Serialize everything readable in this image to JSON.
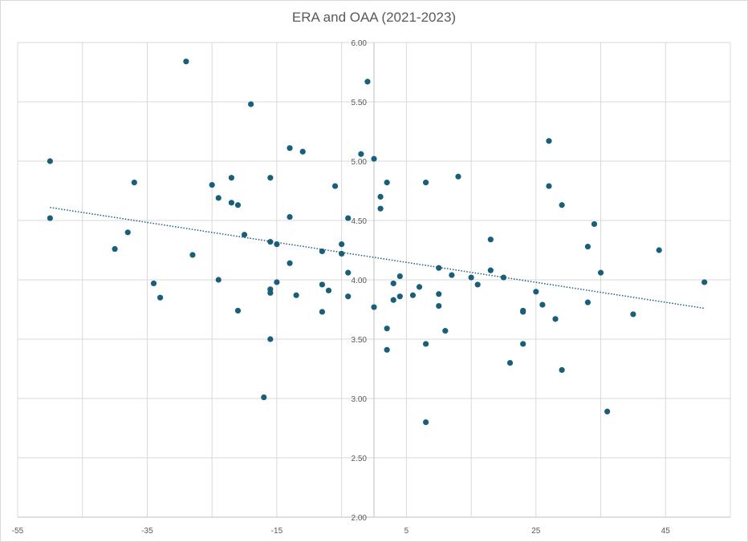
{
  "chart_data": {
    "type": "scatter",
    "title": "ERA and OAA (2021-2023)",
    "xlim": [
      -55,
      55
    ],
    "ylim": [
      2.0,
      6.0
    ],
    "x_ticks": [
      -55,
      -35,
      -15,
      5,
      25,
      45
    ],
    "x_tick_labels": [
      "-55",
      "-35",
      "-15",
      "5",
      "25",
      "45"
    ],
    "y_ticks": [
      2.0,
      2.5,
      3.0,
      3.5,
      4.0,
      4.5,
      5.0,
      5.5,
      6.0
    ],
    "y_tick_labels": [
      "2.00",
      "2.50",
      "3.00",
      "3.50",
      "4.00",
      "4.50",
      "5.00",
      "5.50",
      "6.00"
    ],
    "grid": true,
    "legend": "none",
    "marker_color": "#1a5f7a",
    "trendline": {
      "type": "linear",
      "style": "dotted",
      "color": "#1a5f7a",
      "start": [
        -50,
        4.61
      ],
      "end": [
        51,
        3.76
      ]
    },
    "series": [
      {
        "points": [
          [
            -50,
            5.0
          ],
          [
            -50,
            4.52
          ],
          [
            -29,
            5.84
          ],
          [
            -19,
            5.48
          ],
          [
            -37,
            4.82
          ],
          [
            -22,
            4.86
          ],
          [
            -16,
            4.86
          ],
          [
            -20,
            4.38
          ],
          [
            -25,
            4.8
          ],
          [
            -24,
            4.69
          ],
          [
            -22,
            4.65
          ],
          [
            -21,
            4.63
          ],
          [
            -40,
            4.26
          ],
          [
            -38,
            4.4
          ],
          [
            -34,
            3.97
          ],
          [
            -33,
            3.85
          ],
          [
            -28,
            4.21
          ],
          [
            -24,
            4.0
          ],
          [
            -21,
            3.74
          ],
          [
            -16,
            4.32
          ],
          [
            -15,
            4.3
          ],
          [
            -16,
            3.92
          ],
          [
            -16,
            3.89
          ],
          [
            -15,
            3.98
          ],
          [
            -16,
            3.5
          ],
          [
            -17,
            3.01
          ],
          [
            -13,
            5.11
          ],
          [
            -11,
            5.08
          ],
          [
            -13,
            4.53
          ],
          [
            -13,
            4.14
          ],
          [
            -12,
            3.87
          ],
          [
            -8,
            4.24
          ],
          [
            -8,
            3.96
          ],
          [
            -8,
            3.73
          ],
          [
            -7,
            3.91
          ],
          [
            -6,
            4.79
          ],
          [
            -5,
            4.3
          ],
          [
            -5,
            4.22
          ],
          [
            -4,
            4.52
          ],
          [
            -4,
            4.06
          ],
          [
            -4,
            3.86
          ],
          [
            -2,
            5.06
          ],
          [
            -1,
            5.67
          ],
          [
            0,
            5.02
          ],
          [
            0,
            3.77
          ],
          [
            1,
            4.7
          ],
          [
            1,
            4.6
          ],
          [
            2,
            4.82
          ],
          [
            2,
            3.59
          ],
          [
            2,
            3.41
          ],
          [
            3,
            3.97
          ],
          [
            3,
            3.83
          ],
          [
            4,
            4.03
          ],
          [
            4,
            3.86
          ],
          [
            6,
            3.87
          ],
          [
            7,
            3.94
          ],
          [
            8,
            4.82
          ],
          [
            8,
            3.46
          ],
          [
            8,
            2.8
          ],
          [
            10,
            4.1
          ],
          [
            10,
            3.88
          ],
          [
            10,
            3.78
          ],
          [
            11,
            3.57
          ],
          [
            12,
            4.04
          ],
          [
            13,
            4.87
          ],
          [
            15,
            4.02
          ],
          [
            16,
            3.96
          ],
          [
            18,
            4.34
          ],
          [
            18,
            4.08
          ],
          [
            20,
            4.02
          ],
          [
            21,
            3.3
          ],
          [
            23,
            3.74
          ],
          [
            23,
            3.73
          ],
          [
            23,
            3.46
          ],
          [
            25,
            3.9
          ],
          [
            26,
            3.79
          ],
          [
            27,
            5.17
          ],
          [
            27,
            4.79
          ],
          [
            28,
            3.67
          ],
          [
            29,
            4.63
          ],
          [
            29,
            3.24
          ],
          [
            33,
            4.28
          ],
          [
            33,
            3.81
          ],
          [
            34,
            4.47
          ],
          [
            35,
            4.06
          ],
          [
            36,
            2.89
          ],
          [
            40,
            3.71
          ],
          [
            44,
            4.25
          ],
          [
            51,
            3.98
          ]
        ]
      }
    ]
  }
}
